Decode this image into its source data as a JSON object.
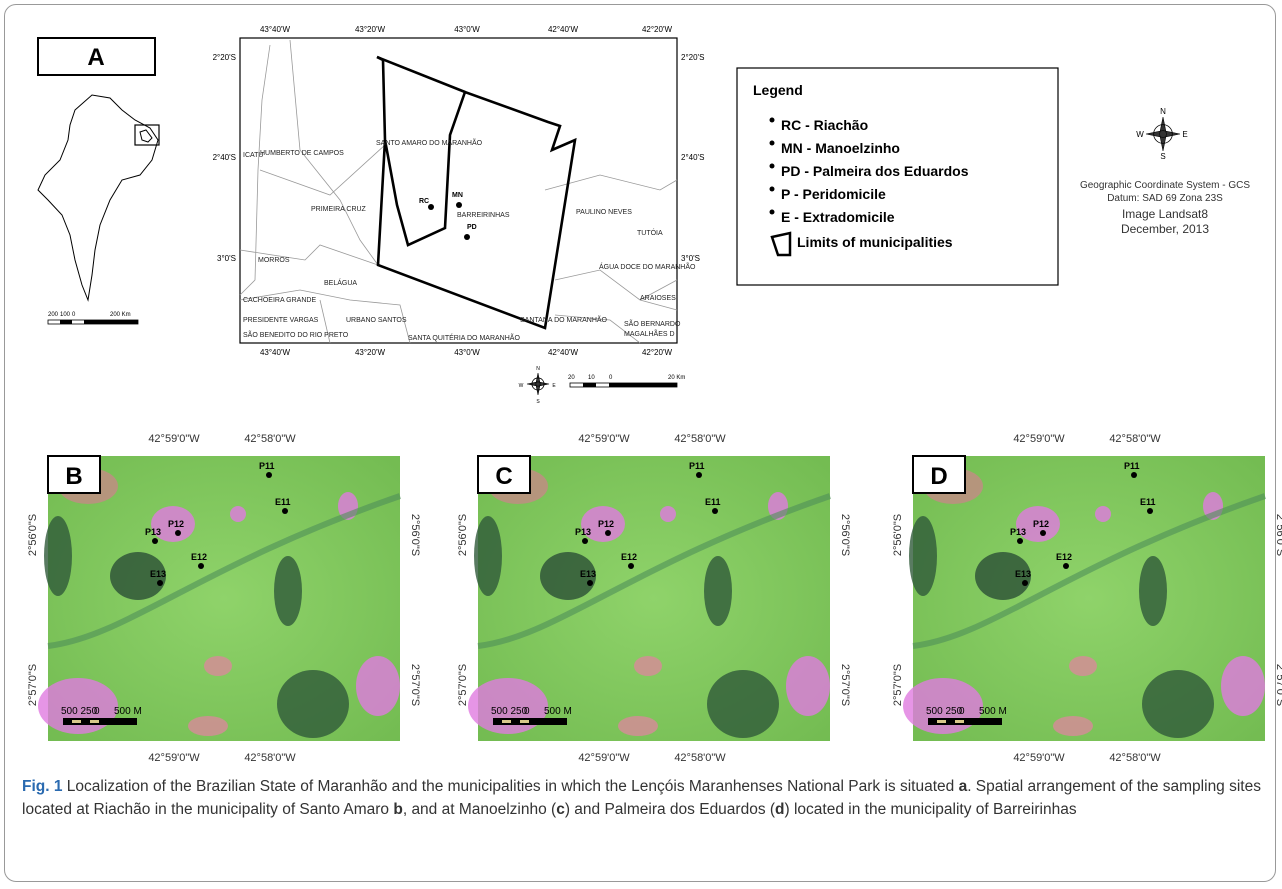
{
  "panel_a": {
    "label": "A",
    "lon_labels": [
      "43°40'W",
      "43°20'W",
      "43°0'W",
      "42°40'W",
      "42°20'W"
    ],
    "lat_labels": [
      "2°20'S",
      "2°40'S",
      "3°0'S"
    ],
    "places": [
      "ICATU",
      "HUMBERTO DE CAMPOS",
      "SANTO AMARO DO MARANHÃO",
      "PRIMEIRA CRUZ",
      "BARREIRINHAS",
      "PAULINO NEVES",
      "TUTÓIA",
      "MORROS",
      "BELÁGUA",
      "ÁGUA DOCE DO MARANHÃO",
      "CACHOEIRA GRANDE",
      "URBANO SANTOS",
      "ARAIOSES",
      "PRESIDENTE VARGAS",
      "SÃO BERNARDO",
      "MAGALHÃES D",
      "SÃO BENEDITO DO RIO PRETO",
      "SANTA QUITÉRIA DO MARANHÃO",
      "SANTANA DO MARANHÃO"
    ],
    "points": [
      "RC",
      "MN",
      "PD"
    ],
    "scale": [
      "20",
      "10",
      "0",
      "20 Km"
    ],
    "state_scale": [
      "200",
      "100",
      "0",
      "200 Km"
    ]
  },
  "legend": {
    "title": "Legend",
    "items": [
      "RC - Riachão",
      "MN - Manoelzinho",
      "PD - Palmeira dos Eduardos",
      "P - Peridomicile",
      "E - Extradomicile",
      "Limits of municipalities"
    ]
  },
  "info": [
    "Geographic Coordinate System - GCS",
    "Datum: SAD 69 Zona 23S",
    "Image Landsat8",
    "December, 2013"
  ],
  "compass": [
    "N",
    "S",
    "W",
    "E"
  ],
  "site_maps": {
    "panels": [
      "B",
      "C",
      "D"
    ],
    "lon_labels": [
      "42°59'0\"W",
      "42°58'0\"W"
    ],
    "lat_labels": [
      "2°56'0\"S",
      "2°57'0\"S"
    ],
    "points": [
      "P11",
      "E11",
      "P12",
      "P13",
      "E12",
      "E13"
    ],
    "scale": [
      "500 250",
      "0",
      "500 M"
    ]
  },
  "caption": [
    {
      "text": "Fig. 1",
      "bold": true
    },
    {
      "text": " Localization of the Brazilian State of Maranhão and the municipalities in which the Lençóis Maranhenses National Park is situated ",
      "bold": false
    },
    {
      "text": "a",
      "bold": true
    },
    {
      "text": ". Spatial arrangement of the sampling sites located at Riachão in the municipality of Santo Amaro ",
      "bold": false
    },
    {
      "text": "b",
      "bold": true
    },
    {
      "text": ", and at Manoelzinho (",
      "bold": false
    },
    {
      "text": "c",
      "bold": true
    },
    {
      "text": ") and Palmeira dos Eduardos (",
      "bold": false
    },
    {
      "text": "d",
      "bold": true
    },
    {
      "text": ") located in the municipality of Barreirinhas",
      "bold": false
    }
  ]
}
